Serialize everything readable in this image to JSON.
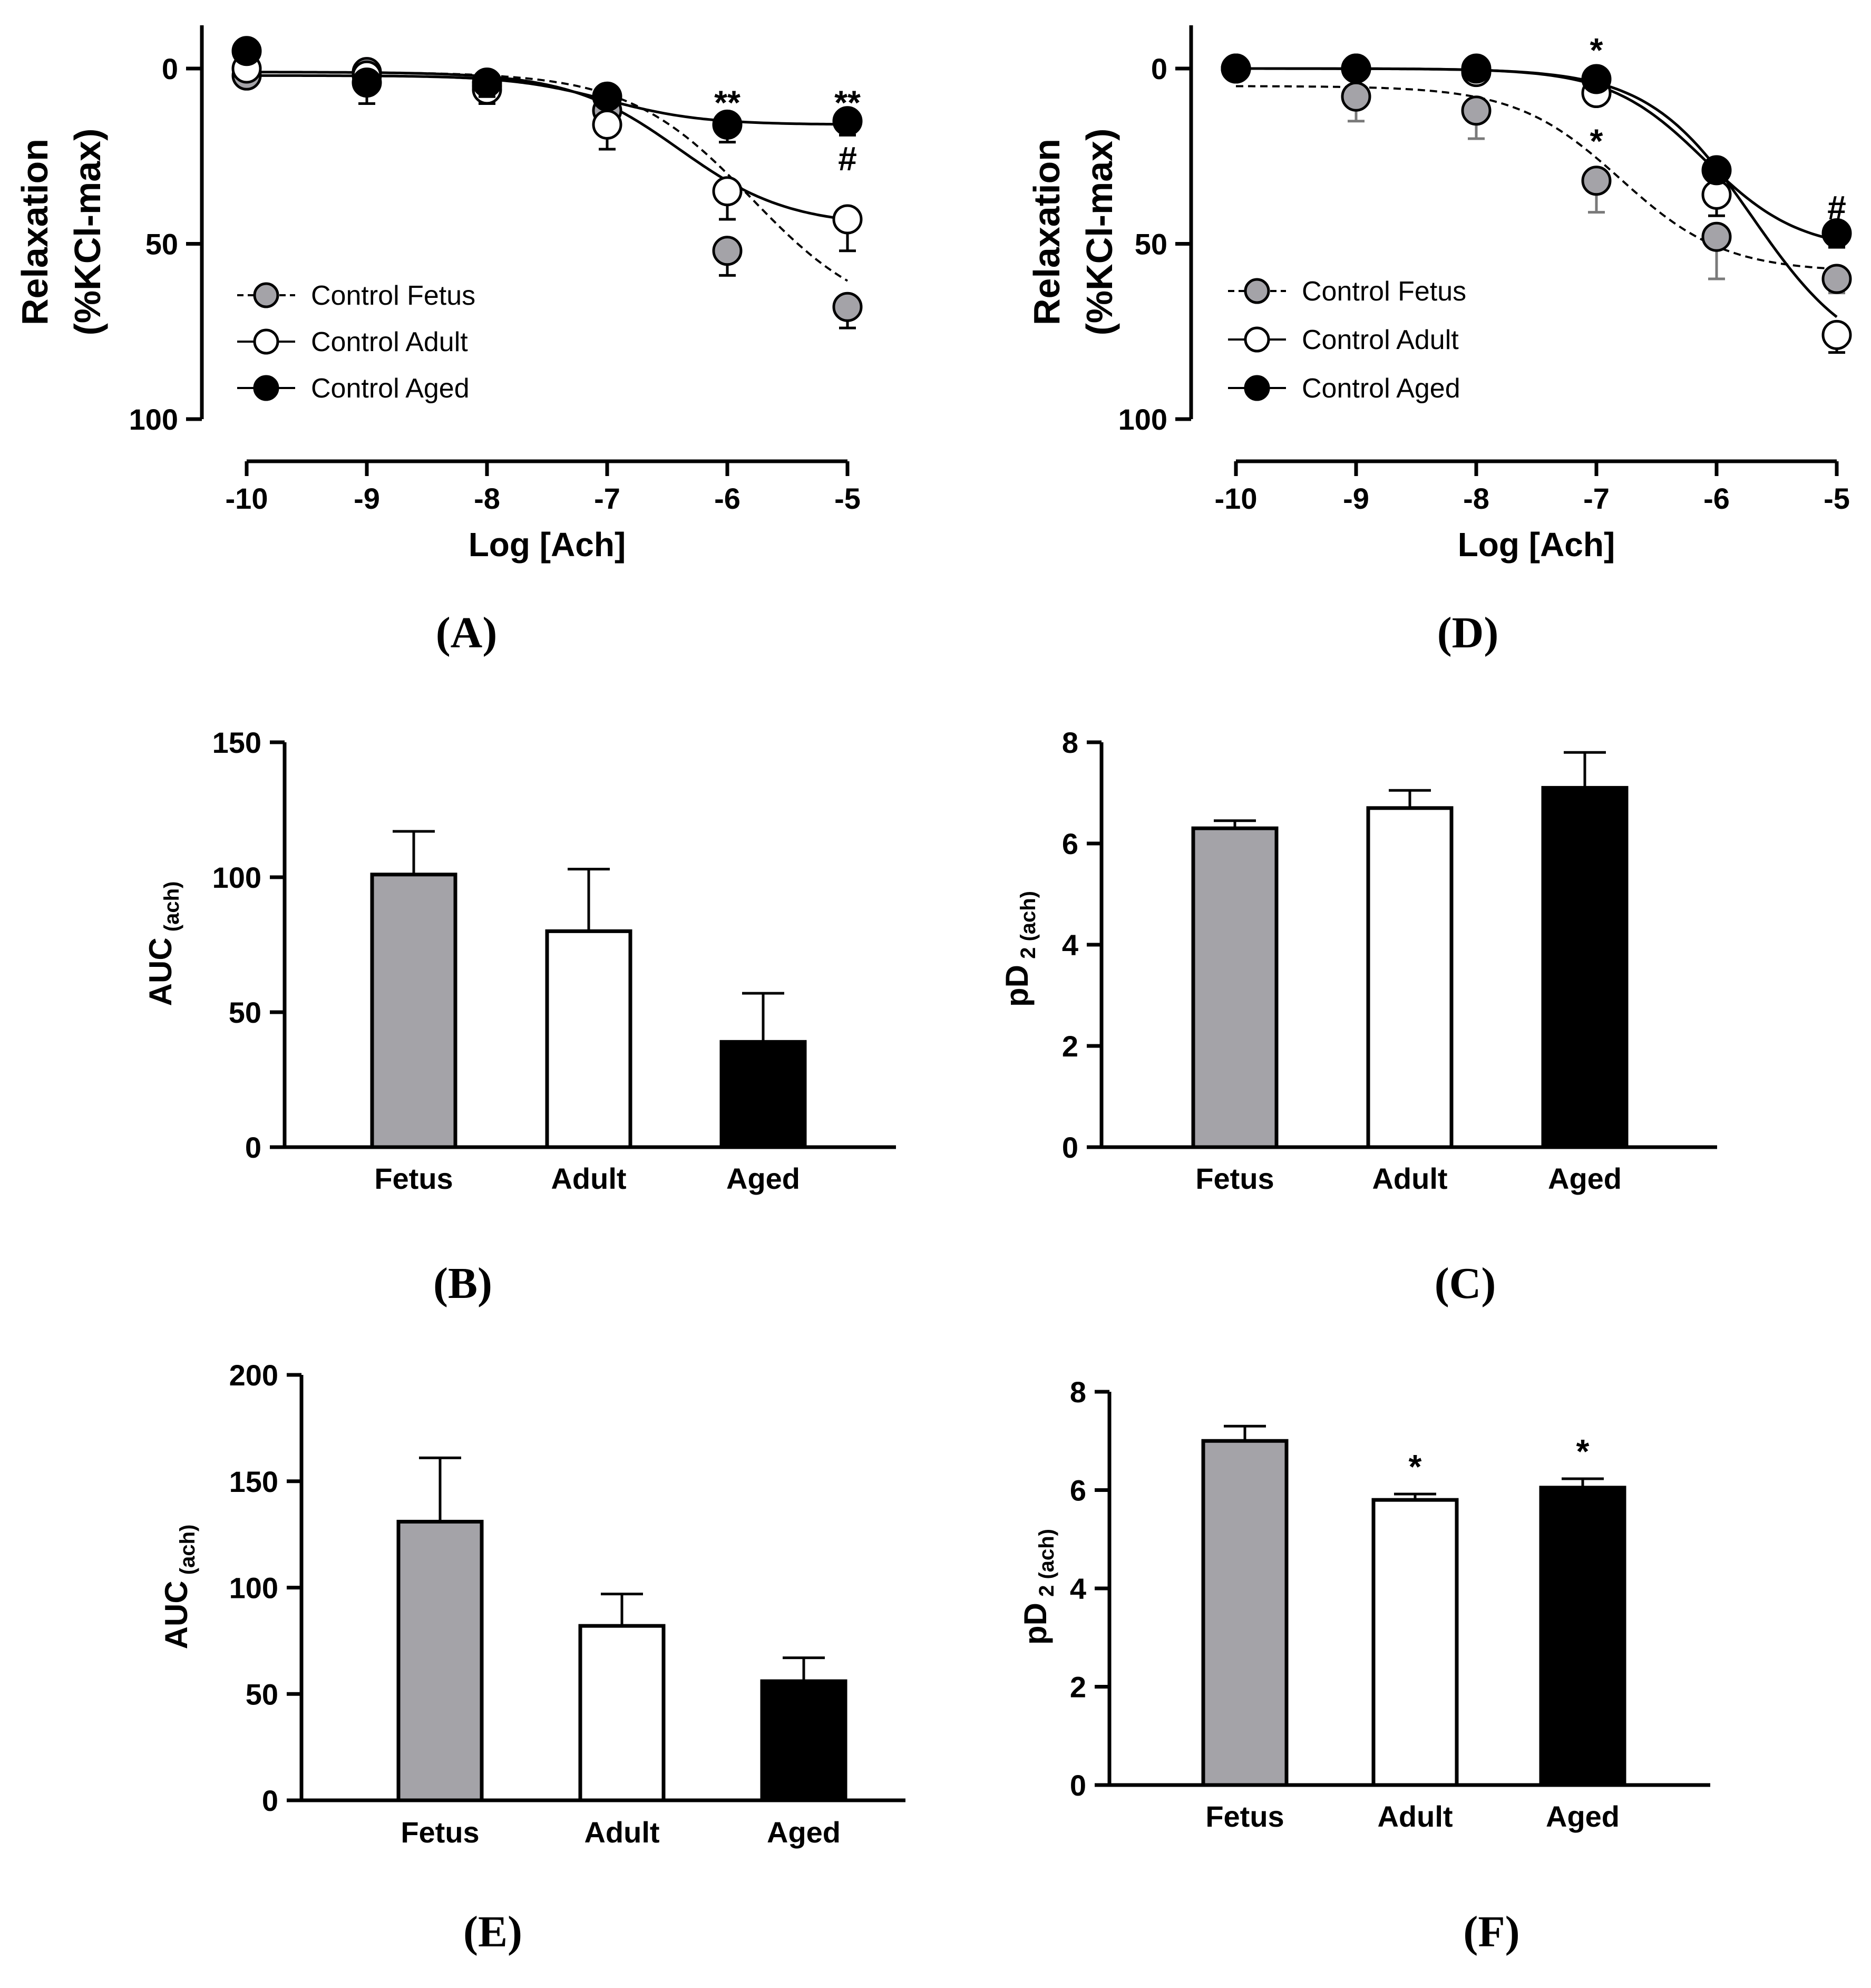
{
  "chart_data": [
    {
      "id": "A",
      "type": "line",
      "panel_label": "(A)",
      "xlabel": "Log [Ach]",
      "ylabel_line1": "Relaxation",
      "ylabel_line2": "(%KCl-max)",
      "x": [
        -10,
        -9,
        -8,
        -7,
        -6,
        -5
      ],
      "xticks": [
        "-10",
        "-9",
        "-8",
        "-7",
        "-6",
        "-5"
      ],
      "yticks": [
        "0",
        "50",
        "100"
      ],
      "ytick_values": [
        0,
        50,
        100
      ],
      "ylim": [
        100,
        -10
      ],
      "legend_position": "bottom-left",
      "series": [
        {
          "name": "Control Fetus",
          "style": "dashed",
          "marker": "gray",
          "values": [
            2,
            1,
            5,
            12,
            52,
            68
          ],
          "errors": [
            0,
            3,
            4,
            5,
            7,
            6
          ],
          "fit": {
            "bottom": 1,
            "top": 73,
            "ec50_log": -5.8,
            "hill": 0.85
          }
        },
        {
          "name": "Control Adult",
          "style": "solid",
          "marker": "open",
          "values": [
            0,
            2,
            6,
            16,
            35,
            43
          ],
          "errors": [
            0,
            4,
            4,
            7,
            8,
            9
          ],
          "fit": {
            "bottom": 1,
            "top": 45,
            "ec50_log": -6.4,
            "hill": 0.95
          }
        },
        {
          "name": "Control Aged",
          "style": "solid",
          "marker": "filled",
          "values": [
            -5,
            4,
            4,
            8,
            16,
            15
          ],
          "errors": [
            0,
            6,
            4,
            3,
            5,
            4
          ],
          "fit": {
            "bottom": 2,
            "top": 16,
            "ec50_log": -7.0,
            "hill": 1.1
          }
        }
      ],
      "annotations": [
        {
          "text": "**",
          "x": -6,
          "y": 10
        },
        {
          "text": "**",
          "x": -5,
          "y": 10
        },
        {
          "text": "#",
          "x": -5,
          "y": 26
        }
      ]
    },
    {
      "id": "D",
      "type": "line",
      "panel_label": "(D)",
      "xlabel": "Log [Ach]",
      "ylabel_line1": "Relaxation",
      "ylabel_line2": "(%KCl-max)",
      "x": [
        -10,
        -9,
        -8,
        -7,
        -6,
        -5
      ],
      "xticks": [
        "-10",
        "-9",
        "-8",
        "-7",
        "-6",
        "-5"
      ],
      "yticks": [
        "0",
        "50",
        "100"
      ],
      "ytick_values": [
        0,
        50,
        100
      ],
      "ylim": [
        100,
        -10
      ],
      "legend_position": "bottom-left",
      "series": [
        {
          "name": "Control Fetus",
          "style": "dashed",
          "marker": "gray",
          "values": [
            0,
            8,
            12,
            32,
            48,
            60
          ],
          "errors": [
            0,
            7,
            8,
            9,
            12,
            4
          ],
          "fit": {
            "bottom": 5,
            "top": 58,
            "ec50_log": -6.8,
            "hill": 1.0
          }
        },
        {
          "name": "Control Adult",
          "style": "solid",
          "marker": "open",
          "values": [
            0,
            0,
            1,
            7,
            36,
            76
          ],
          "errors": [
            0,
            0,
            1,
            2,
            6,
            5
          ],
          "fit": {
            "bottom": 0,
            "top": 85,
            "ec50_log": -5.7,
            "hill": 1.0
          }
        },
        {
          "name": "Control Aged",
          "style": "solid",
          "marker": "filled",
          "values": [
            0,
            0,
            0,
            3,
            29,
            47
          ],
          "errors": [
            0,
            0,
            1,
            2,
            2,
            4
          ],
          "fit": {
            "bottom": 0,
            "top": 52,
            "ec50_log": -6.1,
            "hill": 1.1
          }
        }
      ],
      "annotations": [
        {
          "text": "*",
          "x": -7,
          "y": -5
        },
        {
          "text": "*",
          "x": -7,
          "y": 21
        },
        {
          "text": "#",
          "x": -5,
          "y": 40
        }
      ]
    },
    {
      "id": "B",
      "type": "bar",
      "panel_label": "(B)",
      "ylabel": "AUC",
      "ylabel_sub": "(ach)",
      "categories": [
        "Fetus",
        "Adult",
        "Aged"
      ],
      "values": [
        101,
        80,
        39
      ],
      "errors": [
        16,
        23,
        18
      ],
      "bar_colors": [
        "#a4a3a8",
        "#ffffff",
        "#000000"
      ],
      "ylim": [
        0,
        150
      ],
      "yticks": [
        "0",
        "50",
        "100",
        "150"
      ],
      "ytick_values": [
        0,
        50,
        100,
        150
      ],
      "annotations": []
    },
    {
      "id": "C",
      "type": "bar",
      "panel_label": "(C)",
      "ylabel": "pD",
      "ylabel_sub": "2 (ach)",
      "categories": [
        "Fetus",
        "Adult",
        "Aged"
      ],
      "values": [
        6.3,
        6.7,
        7.1
      ],
      "errors": [
        0.15,
        0.35,
        0.7
      ],
      "bar_colors": [
        "#a4a3a8",
        "#ffffff",
        "#000000"
      ],
      "ylim": [
        0,
        8
      ],
      "yticks": [
        "0",
        "2",
        "4",
        "6",
        "8"
      ],
      "ytick_values": [
        0,
        2,
        4,
        6,
        8
      ],
      "annotations": []
    },
    {
      "id": "E",
      "type": "bar",
      "panel_label": "(E)",
      "ylabel": "AUC",
      "ylabel_sub": "(ach)",
      "categories": [
        "Fetus",
        "Adult",
        "Aged"
      ],
      "values": [
        131,
        82,
        56
      ],
      "errors": [
        30,
        15,
        11
      ],
      "bar_colors": [
        "#a4a3a8",
        "#ffffff",
        "#000000"
      ],
      "ylim": [
        0,
        200
      ],
      "yticks": [
        "0",
        "50",
        "100",
        "150",
        "200"
      ],
      "ytick_values": [
        0,
        50,
        100,
        150,
        200
      ],
      "annotations": []
    },
    {
      "id": "F",
      "type": "bar",
      "panel_label": "(F)",
      "ylabel": "pD",
      "ylabel_sub": "2 (ach)",
      "categories": [
        "Fetus",
        "Adult",
        "Aged"
      ],
      "values": [
        7.0,
        5.8,
        6.05
      ],
      "errors": [
        0.3,
        0.12,
        0.18
      ],
      "bar_colors": [
        "#a4a3a8",
        "#ffffff",
        "#000000"
      ],
      "ylim": [
        0,
        8
      ],
      "yticks": [
        "0",
        "2",
        "4",
        "6",
        "8"
      ],
      "ytick_values": [
        0,
        2,
        4,
        6,
        8
      ],
      "annotations": [
        {
          "text": "*",
          "category": 1
        },
        {
          "text": "*",
          "category": 2
        }
      ]
    }
  ]
}
